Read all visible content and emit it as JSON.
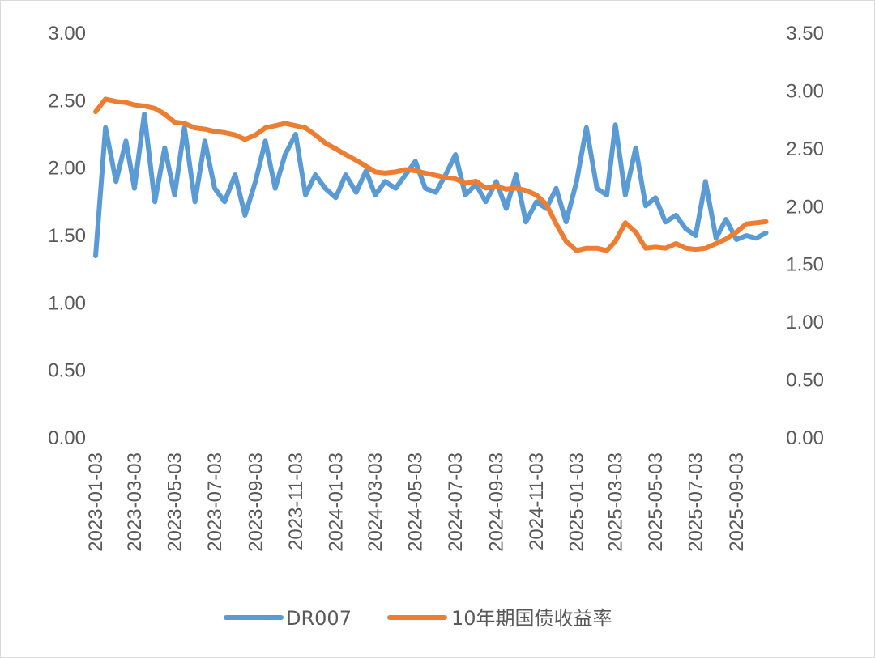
{
  "chart_data": {
    "type": "line",
    "title": "",
    "y_left": {
      "ylim": [
        0,
        3.0
      ],
      "ticks": [
        "0.00",
        "0.50",
        "1.00",
        "1.50",
        "2.00",
        "2.50",
        "3.00"
      ]
    },
    "y_right": {
      "ylim": [
        0,
        3.5
      ],
      "ticks": [
        "0.00",
        "0.50",
        "1.00",
        "1.50",
        "2.00",
        "2.50",
        "3.00",
        "3.50"
      ]
    },
    "x_ticks": [
      "2023-01-03",
      "2023-03-03",
      "2023-05-03",
      "2023-07-03",
      "2023-09-03",
      "2023-11-03",
      "2024-01-03",
      "2024-03-03",
      "2024-05-03",
      "2024-07-03",
      "2024-09-03",
      "2024-11-03",
      "2025-01-03",
      "2025-03-03",
      "2025-05-03",
      "2025-07-03",
      "2025-09-03"
    ],
    "grid": false,
    "legend": "bottom",
    "x": [
      "2023-01-03",
      "2023-01-18",
      "2023-02-03",
      "2023-02-18",
      "2023-03-03",
      "2023-03-18",
      "2023-04-03",
      "2023-04-18",
      "2023-05-03",
      "2023-05-18",
      "2023-06-03",
      "2023-06-18",
      "2023-07-03",
      "2023-07-18",
      "2023-08-03",
      "2023-08-18",
      "2023-09-03",
      "2023-09-18",
      "2023-10-03",
      "2023-10-18",
      "2023-11-03",
      "2023-11-18",
      "2023-12-03",
      "2023-12-18",
      "2024-01-03",
      "2024-01-18",
      "2024-02-03",
      "2024-02-18",
      "2024-03-03",
      "2024-03-18",
      "2024-04-03",
      "2024-04-18",
      "2024-05-03",
      "2024-05-18",
      "2024-06-03",
      "2024-06-18",
      "2024-07-03",
      "2024-07-18",
      "2024-08-03",
      "2024-08-18",
      "2024-09-03",
      "2024-09-18",
      "2024-10-03",
      "2024-10-18",
      "2024-11-03",
      "2024-11-18",
      "2024-12-03",
      "2024-12-18",
      "2025-01-03",
      "2025-01-18",
      "2025-02-03",
      "2025-02-18",
      "2025-03-03",
      "2025-03-18",
      "2025-04-03",
      "2025-04-18",
      "2025-05-03",
      "2025-05-18",
      "2025-06-03",
      "2025-06-18",
      "2025-07-03",
      "2025-07-18",
      "2025-08-03",
      "2025-08-18",
      "2025-09-03",
      "2025-09-18",
      "2025-10-03",
      "2025-10-18"
    ],
    "series": [
      {
        "name": "DR007",
        "axis": "left",
        "color": "#5b9bd5",
        "values": [
          1.35,
          2.3,
          1.9,
          2.2,
          1.85,
          2.4,
          1.75,
          2.15,
          1.8,
          2.3,
          1.75,
          2.2,
          1.85,
          1.75,
          1.95,
          1.65,
          1.9,
          2.2,
          1.85,
          2.1,
          2.25,
          1.8,
          1.95,
          1.85,
          1.78,
          1.95,
          1.82,
          1.98,
          1.8,
          1.9,
          1.85,
          1.95,
          2.05,
          1.85,
          1.82,
          1.95,
          2.1,
          1.8,
          1.88,
          1.75,
          1.9,
          1.7,
          1.95,
          1.6,
          1.75,
          1.7,
          1.85,
          1.6,
          1.9,
          2.3,
          1.85,
          1.8,
          2.32,
          1.8,
          2.15,
          1.72,
          1.78,
          1.6,
          1.65,
          1.55,
          1.5,
          1.9,
          1.48,
          1.62,
          1.47,
          1.5,
          1.48,
          1.52
        ]
      },
      {
        "name": "10年期国债收益率",
        "axis": "right",
        "color": "#ed7d31",
        "values": [
          2.82,
          2.93,
          2.91,
          2.9,
          2.88,
          2.87,
          2.85,
          2.8,
          2.73,
          2.72,
          2.68,
          2.67,
          2.65,
          2.64,
          2.62,
          2.58,
          2.62,
          2.68,
          2.7,
          2.72,
          2.7,
          2.68,
          2.62,
          2.55,
          2.5,
          2.45,
          2.4,
          2.35,
          2.3,
          2.29,
          2.3,
          2.32,
          2.31,
          2.29,
          2.27,
          2.25,
          2.24,
          2.2,
          2.22,
          2.16,
          2.18,
          2.15,
          2.16,
          2.14,
          2.1,
          2.02,
          1.85,
          1.7,
          1.62,
          1.64,
          1.64,
          1.62,
          1.7,
          1.86,
          1.78,
          1.64,
          1.65,
          1.64,
          1.68,
          1.64,
          1.63,
          1.64,
          1.68,
          1.72,
          1.78,
          1.85,
          1.86,
          1.87
        ]
      }
    ]
  }
}
